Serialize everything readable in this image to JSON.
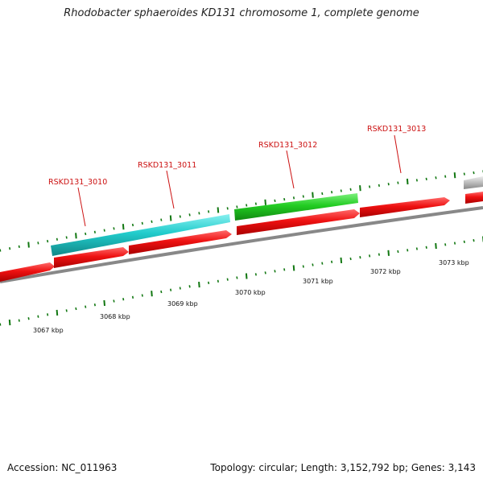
{
  "title": "Rhodobacter sphaeroides KD131 chromosome 1, complete genome",
  "footer": {
    "accession": "Accession: NC_011963",
    "summary": "Topology: circular; Length: 3,152,792 bp; Genes: 3,143"
  },
  "colors": {
    "forward_gene": "#22cc22",
    "forward_gene_alt": "#22cccc",
    "reverse_gene": "#ee1111",
    "unknown_gene": "#bbbbbb",
    "backbone": "#888888",
    "tick": "#117711",
    "label": "#cc1111"
  },
  "scale": {
    "unit": "kbp",
    "ticks": [
      {
        "kbp": 3067,
        "label": "3067 kbp"
      },
      {
        "kbp": 3068,
        "label": "3068 kbp"
      },
      {
        "kbp": 3069,
        "label": "3069 kbp"
      },
      {
        "kbp": 3070,
        "label": "3070 kbp"
      },
      {
        "kbp": 3071,
        "label": "3071 kbp"
      },
      {
        "kbp": 3072,
        "label": "3072 kbp"
      },
      {
        "kbp": 3073,
        "label": "3073 kbp"
      }
    ]
  },
  "labeled_genes": [
    {
      "name": "RSKD131_3010",
      "strand": "forward"
    },
    {
      "name": "RSKD131_3011",
      "strand": "forward"
    },
    {
      "name": "RSKD131_3012",
      "strand": "forward"
    },
    {
      "name": "RSKD131_3013",
      "strand": "forward"
    }
  ]
}
